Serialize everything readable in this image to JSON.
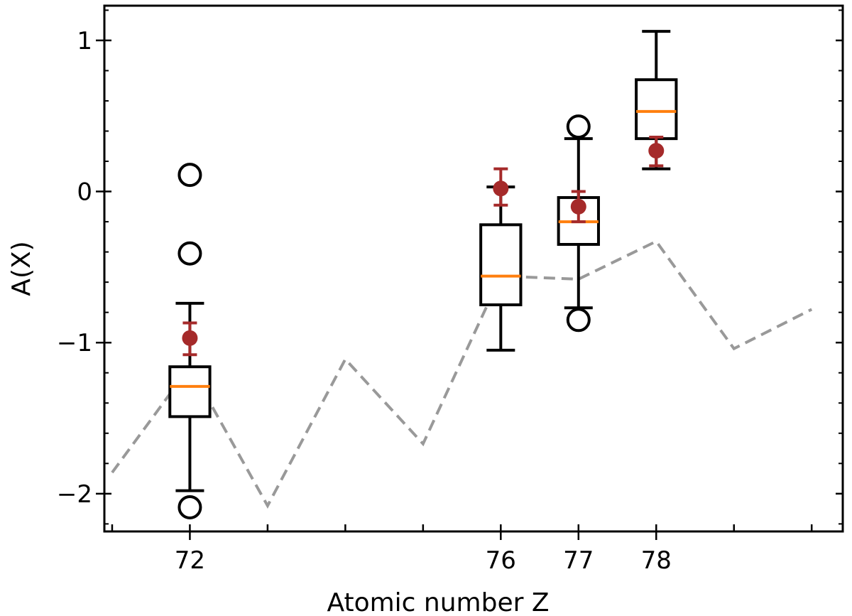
{
  "chart_data": {
    "type": "box",
    "xlabel": "Atomic number Z",
    "ylabel": "A(X)",
    "xlim": [
      70.9,
      80.4
    ],
    "ylim": [
      -2.25,
      1.23
    ],
    "x_tick_labels": [
      72,
      76,
      77,
      78
    ],
    "x_minor_ticks": [
      71,
      72,
      73,
      74,
      75,
      76,
      77,
      78,
      79,
      80
    ],
    "y_ticks": [
      1,
      0,
      -1,
      -2
    ],
    "y_tick_labels": [
      "1",
      "0",
      "−1",
      "−2"
    ],
    "boxes": [
      {
        "x": 72,
        "whisker_low": -1.98,
        "q1": -1.49,
        "median": -1.29,
        "q3": -1.16,
        "whisker_high": -0.74,
        "outliers": [
          0.11,
          -0.41,
          -2.09
        ]
      },
      {
        "x": 76,
        "whisker_low": -1.05,
        "q1": -0.75,
        "median": -0.56,
        "q3": -0.22,
        "whisker_high": 0.03,
        "outliers": []
      },
      {
        "x": 77,
        "whisker_low": -0.77,
        "q1": -0.35,
        "median": -0.2,
        "q3": -0.04,
        "whisker_high": 0.35,
        "outliers": [
          0.43,
          -0.85
        ]
      },
      {
        "x": 78,
        "whisker_low": 0.15,
        "q1": 0.35,
        "median": 0.53,
        "q3": 0.74,
        "whisker_high": 1.06,
        "outliers": []
      }
    ],
    "points_with_error": [
      {
        "x": 72,
        "y": -0.97,
        "err_low": 0.11,
        "err_high": 0.1
      },
      {
        "x": 76,
        "y": 0.02,
        "err_low": 0.11,
        "err_high": 0.13
      },
      {
        "x": 77,
        "y": -0.1,
        "err_low": 0.1,
        "err_high": 0.1
      },
      {
        "x": 78,
        "y": 0.27,
        "err_low": 0.1,
        "err_high": 0.09
      }
    ],
    "dashed_line": {
      "x": [
        71,
        72,
        73,
        74,
        75,
        76,
        77,
        78,
        79,
        80
      ],
      "y": [
        -1.86,
        -1.16,
        -2.08,
        -1.11,
        -1.67,
        -0.56,
        -0.58,
        -0.33,
        -1.04,
        -0.78
      ]
    },
    "colors": {
      "box": "#000000",
      "median": "#ff7f0e",
      "points": "#a52a2a",
      "dashed_line": "#999999"
    }
  }
}
